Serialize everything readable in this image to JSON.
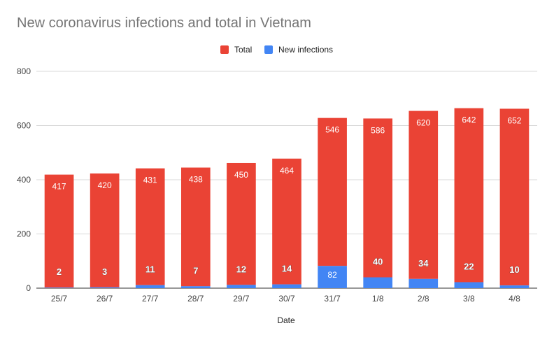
{
  "chart_data": {
    "type": "bar",
    "title": "New coronavirus infections and total in Vietnam",
    "xlabel": "Date",
    "ylabel": "",
    "ylim": [
      0,
      800
    ],
    "yticks": [
      0,
      200,
      400,
      600,
      800
    ],
    "grid": true,
    "legend_position": "top-center",
    "categories": [
      "25/7",
      "26/7",
      "27/7",
      "28/7",
      "29/7",
      "30/7",
      "31/7",
      "1/8",
      "2/8",
      "3/8",
      "4/8"
    ],
    "series": [
      {
        "name": "Total",
        "color": "#ea4335",
        "values": [
          417,
          420,
          431,
          438,
          450,
          464,
          546,
          586,
          620,
          642,
          652
        ]
      },
      {
        "name": "New infections",
        "color": "#4285f4",
        "values": [
          2,
          3,
          11,
          7,
          12,
          14,
          82,
          40,
          34,
          22,
          10
        ]
      }
    ]
  }
}
